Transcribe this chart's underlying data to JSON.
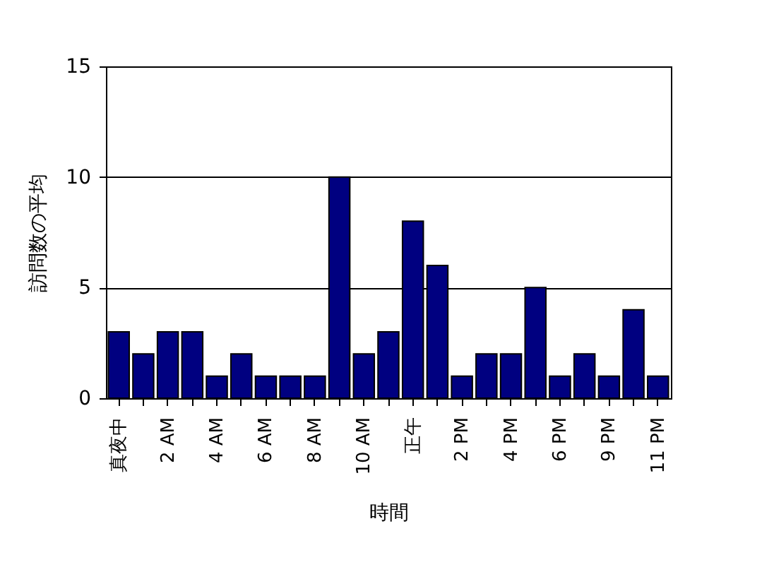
{
  "chart_data": {
    "type": "bar",
    "xlabel": "時間",
    "ylabel": "訪問数の平均",
    "categories": [
      "真夜中",
      null,
      "2 AM",
      null,
      "4 AM",
      null,
      "6 AM",
      null,
      "8 AM",
      null,
      "10 AM",
      null,
      "正午",
      null,
      "2 PM",
      null,
      "4 PM",
      null,
      "6 PM",
      null,
      "9 PM",
      null,
      "11 PM"
    ],
    "values": [
      3,
      2,
      3,
      3,
      1,
      2,
      1,
      1,
      1,
      10,
      2,
      3,
      8,
      6,
      1,
      2,
      2,
      5,
      1,
      2,
      1,
      4,
      1
    ],
    "color": "#000080",
    "ylim": [
      0,
      15
    ],
    "yticks": [
      0,
      5,
      10,
      15
    ],
    "grid": "y"
  }
}
